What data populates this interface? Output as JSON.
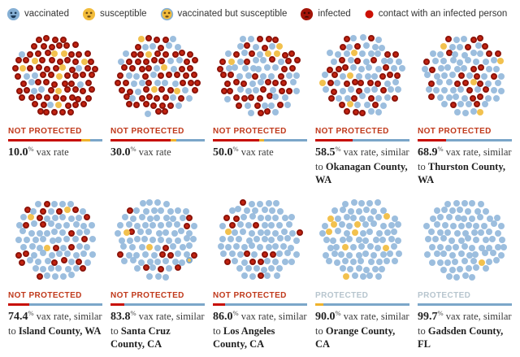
{
  "legend": {
    "items": [
      {
        "icon": "vaccinated-face-icon",
        "label": "vaccinated"
      },
      {
        "icon": "susceptible-face-icon",
        "label": "susceptible"
      },
      {
        "icon": "vaccinated-but-susceptible-face-icon",
        "label": "vaccinated but susceptible"
      },
      {
        "icon": "infected-face-icon",
        "label": "infected"
      },
      {
        "icon": "contact-dot-icon",
        "label": "contact with an infected person"
      }
    ]
  },
  "palette": {
    "dot_vaccinated": "#9cbede",
    "dot_susceptible": "#f2c14e",
    "dot_infected_fill": "#c42310",
    "dot_infected_ring": "#8c130a",
    "bar_red": "#c70d02",
    "bar_yellow": "#efb32c",
    "bar_blue": "#7ba6c9",
    "status_not_protected": "#c0391b",
    "status_protected": "#b7c5ce"
  },
  "chart_data": {
    "type": "dot-field-grid",
    "people_per_group": 100,
    "columns": 5,
    "rows": 2,
    "panels": [
      {
        "seed": 101,
        "status": "NOT PROTECTED",
        "protected": false,
        "vax_rate": "10.0",
        "suffix": "vax rate",
        "county": null,
        "bar": [
          [
            "red",
            78
          ],
          [
            "yellow",
            9
          ],
          [
            "blue",
            13
          ]
        ],
        "counts": {
          "vaccinated": 10,
          "susceptible": 10,
          "vaccinated_but_susceptible": 0,
          "infected": 80
        }
      },
      {
        "seed": 202,
        "status": "NOT PROTECTED",
        "protected": false,
        "vax_rate": "30.0",
        "suffix": "vax rate",
        "county": null,
        "bar": [
          [
            "red",
            64
          ],
          [
            "yellow",
            6
          ],
          [
            "blue",
            30
          ]
        ],
        "counts": {
          "vaccinated": 29,
          "susceptible": 6,
          "vaccinated_but_susceptible": 0,
          "infected": 65
        }
      },
      {
        "seed": 303,
        "status": "NOT PROTECTED",
        "protected": false,
        "vax_rate": "50.0",
        "suffix": "vax rate",
        "county": null,
        "bar": [
          [
            "red",
            49
          ],
          [
            "yellow",
            5
          ],
          [
            "blue",
            46
          ]
        ],
        "counts": {
          "vaccinated": 47,
          "susceptible": 5,
          "vaccinated_but_susceptible": 0,
          "infected": 48
        }
      },
      {
        "seed": 404,
        "status": "NOT PROTECTED",
        "protected": false,
        "vax_rate": "58.5",
        "suffix": "vax rate, similar to",
        "county": "Okanagan County, WA",
        "bar": [
          [
            "red",
            40
          ],
          [
            "blue",
            60
          ]
        ],
        "counts": {
          "vaccinated": 57,
          "susceptible": 4,
          "vaccinated_but_susceptible": 0,
          "infected": 39
        }
      },
      {
        "seed": 505,
        "status": "NOT PROTECTED",
        "protected": false,
        "vax_rate": "68.9",
        "suffix": "vax rate, similar to",
        "county": "Thurston County, WA",
        "bar": [
          [
            "red",
            30
          ],
          [
            "blue",
            70
          ]
        ],
        "counts": {
          "vaccinated": 67,
          "susceptible": 4,
          "vaccinated_but_susceptible": 0,
          "infected": 29
        }
      },
      {
        "seed": 606,
        "status": "NOT PROTECTED",
        "protected": false,
        "vax_rate": "74.4",
        "suffix": "vax rate, similar to",
        "county": "Island County, WA",
        "bar": [
          [
            "red",
            22
          ],
          [
            "blue",
            78
          ]
        ],
        "counts": {
          "vaccinated": 74,
          "susceptible": 3,
          "vaccinated_but_susceptible": 0,
          "infected": 23
        }
      },
      {
        "seed": 707,
        "status": "NOT PROTECTED",
        "protected": false,
        "vax_rate": "83.8",
        "suffix": "vax rate, similar to",
        "county": "Santa Cruz County, CA",
        "bar": [
          [
            "red",
            15
          ],
          [
            "blue",
            85
          ]
        ],
        "counts": {
          "vaccinated": 83,
          "susceptible": 2,
          "vaccinated_but_susceptible": 1,
          "infected": 14
        }
      },
      {
        "seed": 808,
        "status": "NOT PROTECTED",
        "protected": false,
        "vax_rate": "86.0",
        "suffix": "vax rate, similar to",
        "county": "Los Angeles County, CA",
        "bar": [
          [
            "red",
            13
          ],
          [
            "blue",
            87
          ]
        ],
        "counts": {
          "vaccinated": 85,
          "susceptible": 1,
          "vaccinated_but_susceptible": 0,
          "infected": 14
        }
      },
      {
        "seed": 909,
        "status": "PROTECTED",
        "protected": true,
        "vax_rate": "90.0",
        "suffix": "vax rate, similar to",
        "county": "Orange County, CA",
        "bar": [
          [
            "yellow",
            9
          ],
          [
            "blue",
            91
          ]
        ],
        "counts": {
          "vaccinated": 90,
          "susceptible": 10,
          "vaccinated_but_susceptible": 0,
          "infected": 0
        }
      },
      {
        "seed": 1010,
        "status": "PROTECTED",
        "protected": true,
        "vax_rate": "99.7",
        "suffix": "vax rate, similar to",
        "county": "Gadsden County, FL",
        "bar": [
          [
            "blue",
            100
          ]
        ],
        "counts": {
          "vaccinated": 99,
          "susceptible": 1,
          "vaccinated_but_susceptible": 0,
          "infected": 0
        }
      }
    ]
  }
}
